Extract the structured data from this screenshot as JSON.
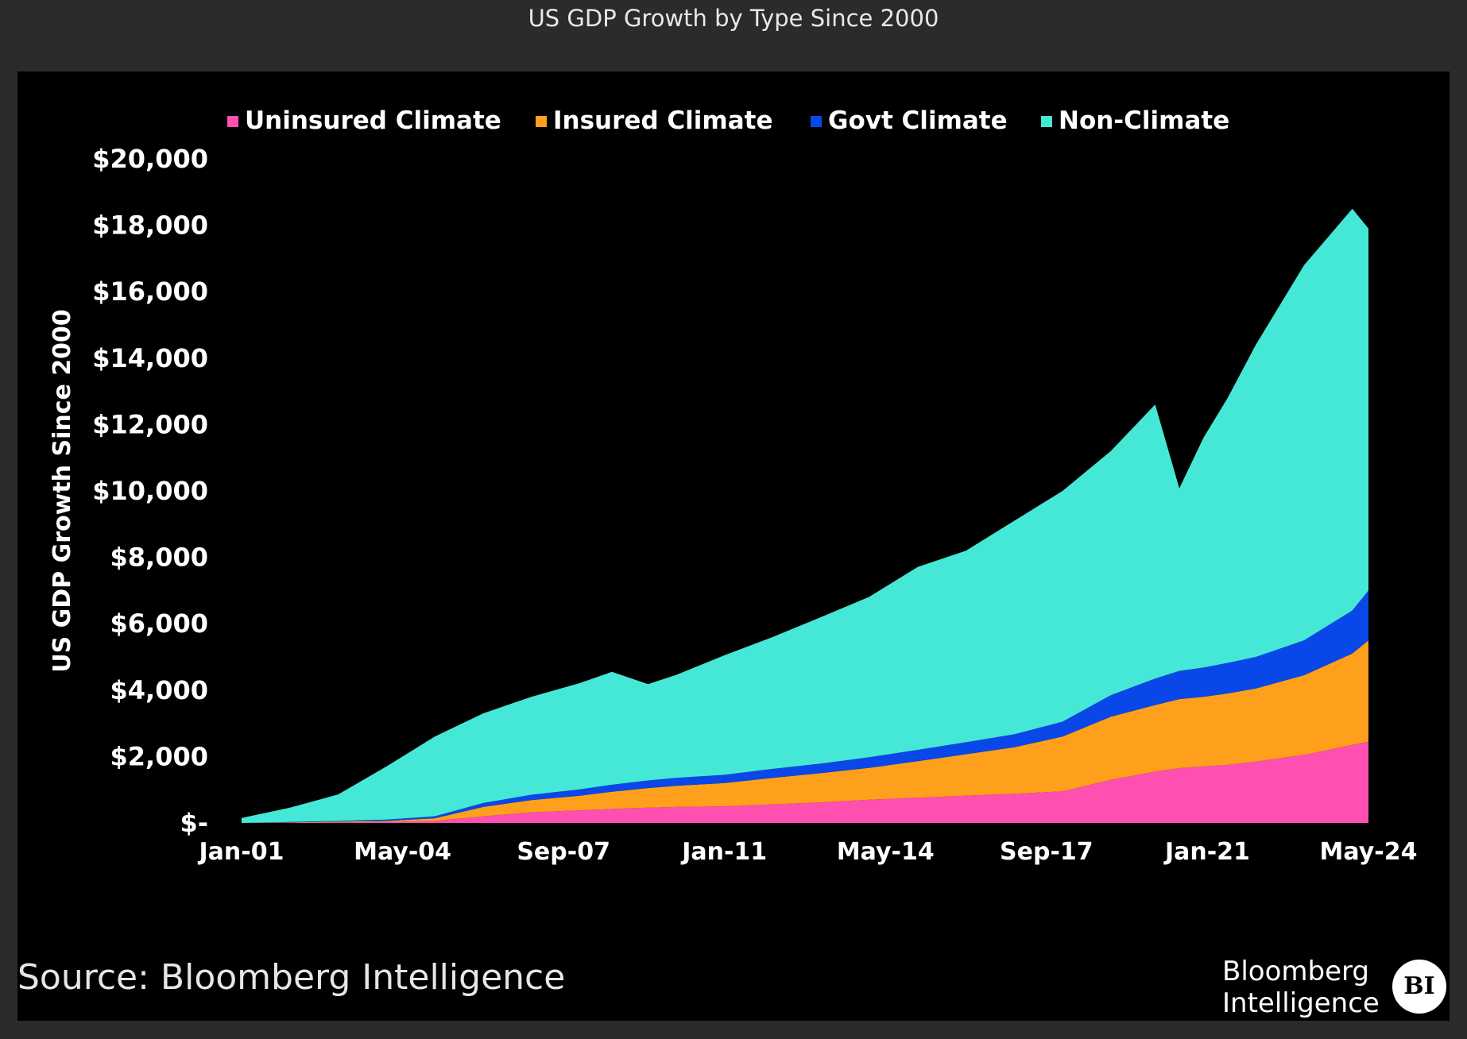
{
  "header": {
    "title": "US GDP Growth by Type Since 2000"
  },
  "footer": {
    "source": "Source: Bloomberg Intelligence",
    "brand_line1": "Bloomberg",
    "brand_line2": "Intelligence",
    "brand_badge": "BI"
  },
  "chart_data": {
    "type": "area",
    "stacked": true,
    "title": "",
    "xlabel": "",
    "ylabel": "US GDP Growth Since 2000",
    "ylim": [
      0,
      20000
    ],
    "y_ticks": [
      {
        "value": 0,
        "label": "$-"
      },
      {
        "value": 2000,
        "label": "$2,000"
      },
      {
        "value": 4000,
        "label": "$4,000"
      },
      {
        "value": 6000,
        "label": "$6,000"
      },
      {
        "value": 8000,
        "label": "$8,000"
      },
      {
        "value": 10000,
        "label": "$10,000"
      },
      {
        "value": 12000,
        "label": "$12,000"
      },
      {
        "value": 14000,
        "label": "$14,000"
      },
      {
        "value": 16000,
        "label": "$16,000"
      },
      {
        "value": 18000,
        "label": "$18,000"
      },
      {
        "value": 20000,
        "label": "$20,000"
      }
    ],
    "x_ticks": [
      {
        "value": "2001-01",
        "label": "Jan-01"
      },
      {
        "value": "2004-05",
        "label": "May-04"
      },
      {
        "value": "2007-09",
        "label": "Sep-07"
      },
      {
        "value": "2011-01",
        "label": "Jan-11"
      },
      {
        "value": "2014-05",
        "label": "May-14"
      },
      {
        "value": "2017-09",
        "label": "Sep-17"
      },
      {
        "value": "2021-01",
        "label": "Jan-21"
      },
      {
        "value": "2024-05",
        "label": "May-24"
      }
    ],
    "x": [
      "2001-01",
      "2002-01",
      "2003-01",
      "2004-01",
      "2005-01",
      "2006-01",
      "2007-01",
      "2008-01",
      "2008-09",
      "2009-06",
      "2010-01",
      "2011-01",
      "2012-01",
      "2013-01",
      "2014-01",
      "2015-01",
      "2016-01",
      "2017-01",
      "2018-01",
      "2019-01",
      "2019-12",
      "2020-06",
      "2020-12",
      "2021-06",
      "2022-01",
      "2023-01",
      "2024-01",
      "2024-05"
    ],
    "series": [
      {
        "name": "Uninsured Climate",
        "color": "#ff4fb0",
        "values": [
          0,
          10,
          20,
          30,
          60,
          200,
          320,
          380,
          420,
          460,
          480,
          500,
          560,
          620,
          700,
          760,
          820,
          880,
          950,
          1300,
          1550,
          1650,
          1700,
          1750,
          1850,
          2050,
          2350,
          2450
        ]
      },
      {
        "name": "Insured Climate",
        "color": "#ffa01c",
        "values": [
          0,
          10,
          20,
          30,
          80,
          280,
          370,
          440,
          520,
          590,
          640,
          700,
          800,
          880,
          960,
          1100,
          1250,
          1400,
          1650,
          1900,
          2000,
          2080,
          2100,
          2150,
          2200,
          2400,
          2750,
          3050
        ]
      },
      {
        "name": "Govt Climate",
        "color": "#0a47e8",
        "values": [
          0,
          10,
          20,
          40,
          60,
          120,
          160,
          190,
          210,
          230,
          240,
          250,
          270,
          290,
          320,
          340,
          360,
          390,
          450,
          650,
          800,
          850,
          880,
          920,
          950,
          1050,
          1300,
          1500
        ]
      },
      {
        "name": "Non-Climate",
        "color": "#45e8d6",
        "values": [
          150,
          430,
          800,
          1600,
          2400,
          2700,
          2950,
          3200,
          3400,
          2900,
          3100,
          3600,
          3970,
          4410,
          4830,
          5510,
          5770,
          6430,
          6950,
          7350,
          8250,
          5500,
          6920,
          7980,
          9400,
          11300,
          12100,
          10900
        ]
      }
    ],
    "legend": "top",
    "grid": false
  }
}
